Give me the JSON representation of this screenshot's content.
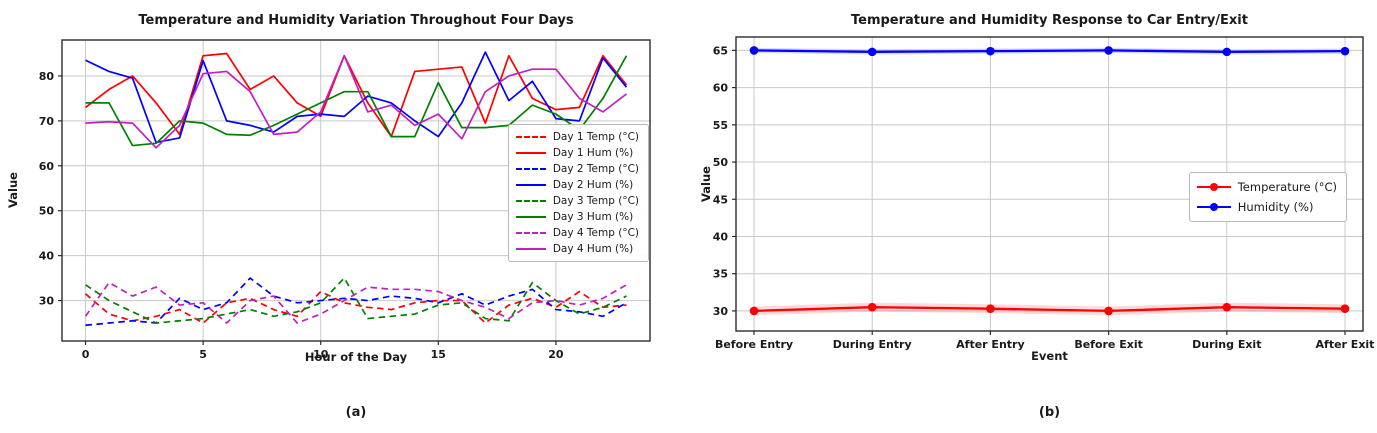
{
  "figure": {
    "background": "#ffffff",
    "grid_color": "#c9c9c9",
    "spine_color": "#2b2b2b",
    "text_color": "#1a1a1a"
  },
  "chart_data": [
    {
      "id": "chart-a",
      "type": "line",
      "title": "Temperature and Humidity Variation Throughout Four Days",
      "xlabel": "Hour of the Day",
      "ylabel": "Value",
      "caption": "(a)",
      "grid": true,
      "legend_position": "center-right-inside",
      "x": [
        0,
        1,
        2,
        3,
        4,
        5,
        6,
        7,
        8,
        9,
        10,
        11,
        12,
        13,
        14,
        15,
        16,
        17,
        18,
        19,
        20,
        21,
        22,
        23
      ],
      "xticks": [
        0,
        5,
        10,
        15,
        20
      ],
      "yticks": [
        30,
        40,
        50,
        60,
        70,
        80
      ],
      "xlim": [
        -1.0,
        24.0
      ],
      "ylim": [
        21,
        88
      ],
      "series": [
        {
          "name": "Day 1 Temp (°C)",
          "color": "#ff0000",
          "dash": true,
          "values": [
            31.5,
            27,
            25.5,
            26.5,
            28,
            25,
            29.5,
            30.5,
            28,
            26.5,
            32,
            29.5,
            28.5,
            28,
            29.5,
            30,
            30,
            25,
            29,
            30.5,
            28.5,
            32,
            28.5,
            29
          ]
        },
        {
          "name": "Day 1 Hum (%)",
          "color": "#ff0000",
          "dash": false,
          "values": [
            73,
            77,
            80,
            74,
            67,
            84.5,
            85,
            77,
            80,
            74,
            71,
            84.5,
            74,
            66.5,
            81,
            81.5,
            82,
            69.5,
            84.5,
            75,
            72.5,
            73,
            84.5,
            78
          ]
        },
        {
          "name": "Day 2 Temp (°C)",
          "color": "#0000ff",
          "dash": true,
          "values": [
            24.5,
            25,
            25.5,
            25,
            30.5,
            28,
            29.5,
            35,
            31,
            29.5,
            30,
            30.5,
            30,
            31,
            30.5,
            29.5,
            31.5,
            29,
            31,
            32.5,
            28,
            27.5,
            26.5,
            29.5
          ]
        },
        {
          "name": "Day 2 Hum (%)",
          "color": "#0000ff",
          "dash": false,
          "values": [
            83.5,
            81,
            79.5,
            65.2,
            66.2,
            83.4,
            70,
            69,
            67.5,
            71,
            71.5,
            71,
            75.5,
            74,
            70,
            66.5,
            74,
            85.3,
            74.5,
            78.8,
            70.5,
            70,
            84,
            77.5
          ]
        },
        {
          "name": "Day 3 Temp (°C)",
          "color": "#008000",
          "dash": true,
          "values": [
            33.5,
            30,
            27.5,
            25,
            25.5,
            26,
            27,
            28,
            26.5,
            27.5,
            29.5,
            35,
            26,
            26.5,
            27,
            29,
            29.5,
            26,
            25.5,
            34,
            30,
            27,
            28.5,
            31
          ]
        },
        {
          "name": "Day 3 Hum (%)",
          "color": "#008000",
          "dash": false,
          "values": [
            74,
            74,
            64.5,
            65,
            70,
            69.5,
            67,
            66.8,
            69,
            71.5,
            74,
            76.5,
            76.5,
            66.5,
            66.5,
            78.5,
            68.5,
            68.5,
            69,
            73.5,
            71.5,
            68,
            75,
            84.5
          ]
        },
        {
          "name": "Day 4 Temp (°C)",
          "color": "#c020c0",
          "dash": true,
          "values": [
            26.5,
            34,
            31,
            33,
            29,
            29.5,
            25,
            30,
            31,
            25,
            27,
            30,
            33,
            32.5,
            32.5,
            32,
            30,
            28.5,
            26,
            29.5,
            30,
            29,
            30.5,
            33.5
          ]
        },
        {
          "name": "Day 4 Hum (%)",
          "color": "#c020c0",
          "dash": false,
          "values": [
            69.5,
            69.8,
            69.5,
            64,
            69,
            80.5,
            81,
            76.5,
            67,
            67.5,
            72,
            84.5,
            72,
            73.5,
            69,
            71.5,
            66,
            76.5,
            80,
            81.5,
            81.5,
            75,
            72,
            76
          ]
        }
      ]
    },
    {
      "id": "chart-b",
      "type": "line",
      "title": "Temperature and Humidity Response to Car Entry/Exit",
      "xlabel": "Event",
      "ylabel": "Value",
      "caption": "(b)",
      "grid": true,
      "legend_position": "center-right-inside",
      "categories": [
        "Before Entry",
        "During Entry",
        "After Entry",
        "Before Exit",
        "During Exit",
        "After Exit"
      ],
      "yticks": [
        30,
        35,
        40,
        45,
        50,
        55,
        60,
        65
      ],
      "ylim": [
        27.3,
        66.8
      ],
      "series": [
        {
          "name": "Temperature (°C)",
          "color": "#ff0000",
          "marker": "circle",
          "band": 0.6,
          "values": [
            30.0,
            30.5,
            30.3,
            30.0,
            30.5,
            30.3
          ]
        },
        {
          "name": "Humidity (%)",
          "color": "#0000ff",
          "marker": "circle",
          "band": 0.35,
          "values": [
            65.0,
            64.8,
            64.9,
            65.0,
            64.8,
            64.9
          ]
        }
      ]
    }
  ]
}
